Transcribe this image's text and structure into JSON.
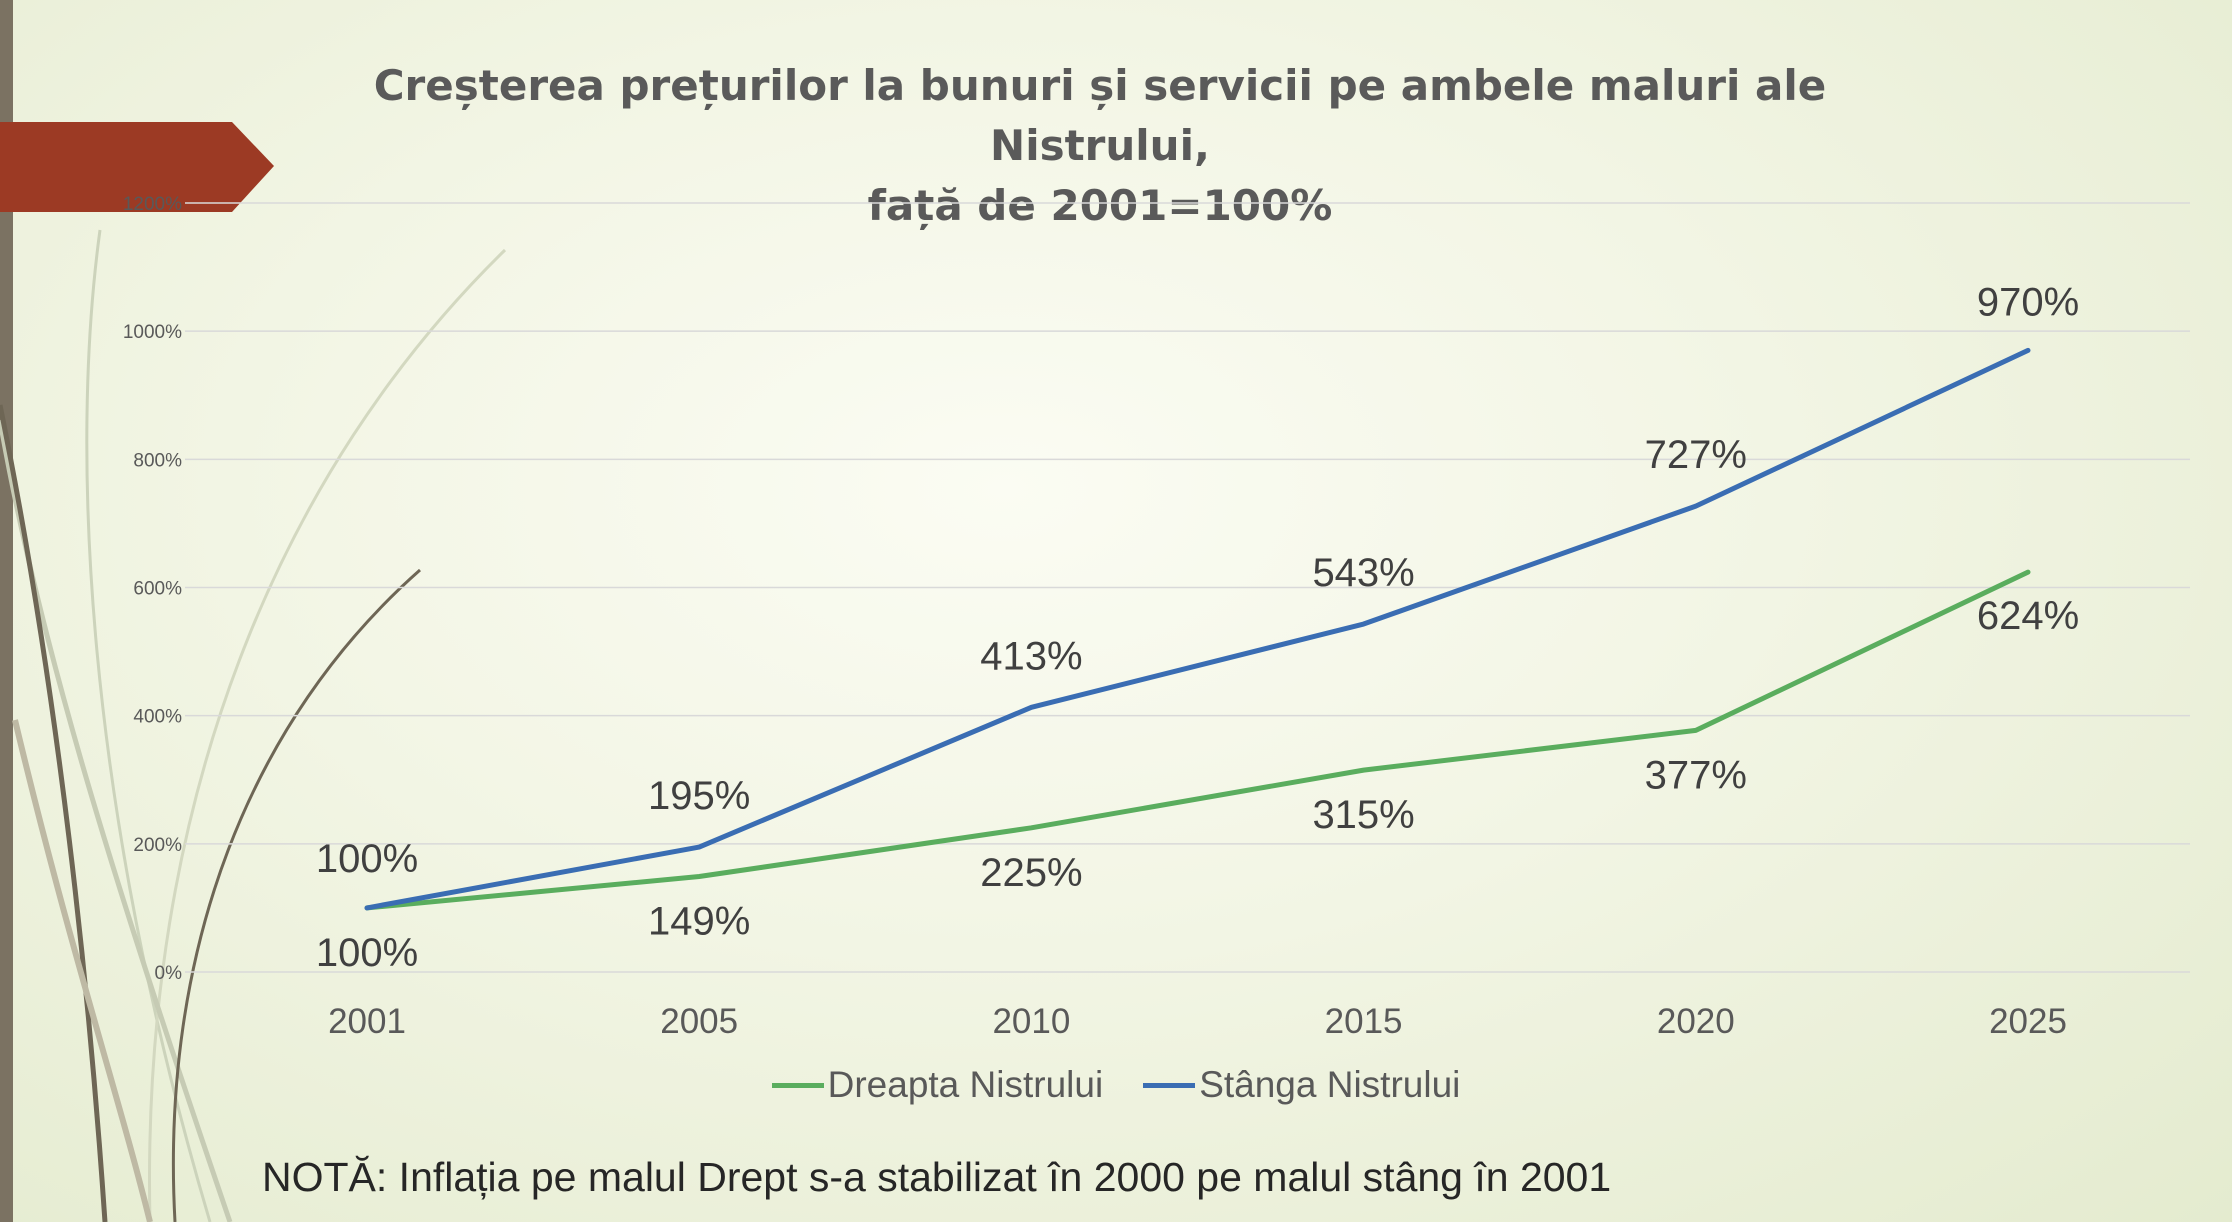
{
  "slide": {
    "title_line1": "Creșterea prețurilor la bunuri și servicii pe ambele maluri ale Nistrului,",
    "title_line2": "față de 2001=100%",
    "note": "NOTĂ: Inflația pe malul Drept s-a stabilizat în 2000 pe malul stâng în 2001"
  },
  "colors": {
    "banner": "#9c3a24",
    "series_green": "#5aad5e",
    "series_blue": "#3a6db3",
    "gridline": "#d9d9d9",
    "left_bar": "#7b7262"
  },
  "chart_data": {
    "type": "line",
    "title": "Creșterea prețurilor la bunuri și servicii pe ambele maluri ale Nistrului, față de 2001=100%",
    "categories": [
      "2001",
      "2005",
      "2010",
      "2015",
      "2020",
      "2025"
    ],
    "y_ticks": [
      "0%",
      "200%",
      "400%",
      "600%",
      "800%",
      "1000%",
      "1200%"
    ],
    "ylim": [
      0,
      1200
    ],
    "grid": true,
    "legend_position": "bottom",
    "series": [
      {
        "name": "Dreapta Nistrului",
        "color": "#5aad5e",
        "values": [
          100,
          149,
          225,
          315,
          377,
          624
        ],
        "labels": [
          "100%",
          "149%",
          "225%",
          "315%",
          "377%",
          "624%"
        ]
      },
      {
        "name": "Stânga Nistrului",
        "color": "#3a6db3",
        "values": [
          100,
          195,
          413,
          543,
          727,
          970
        ],
        "labels": [
          "100%",
          "195%",
          "413%",
          "543%",
          "727%",
          "970%"
        ]
      }
    ]
  }
}
